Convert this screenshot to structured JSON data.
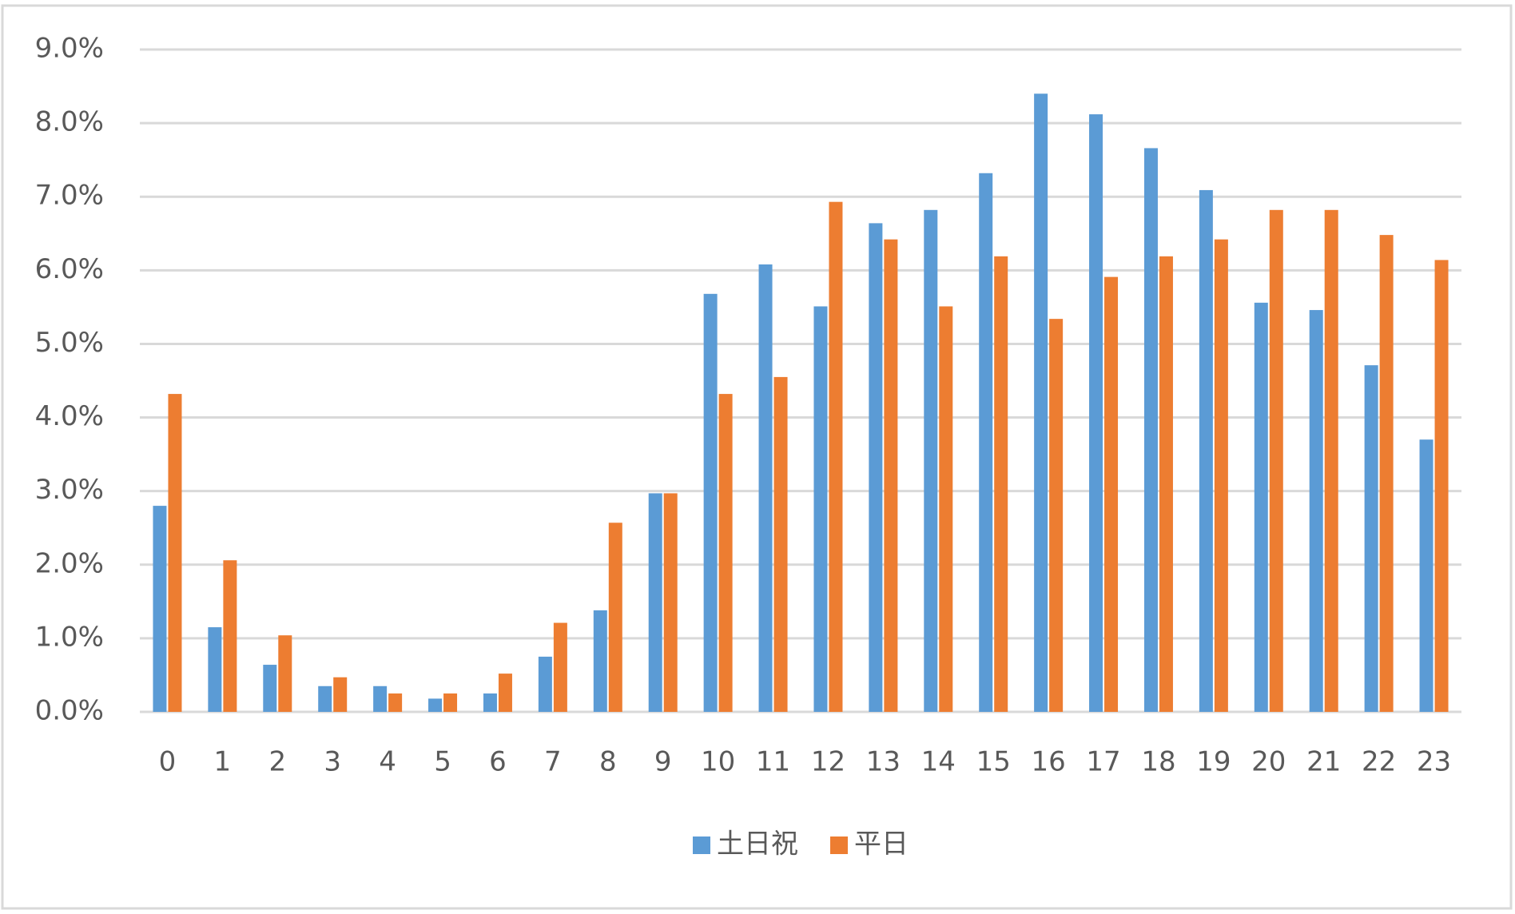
{
  "chart_data": {
    "type": "bar",
    "categories": [
      "0",
      "1",
      "2",
      "3",
      "4",
      "5",
      "6",
      "7",
      "8",
      "9",
      "10",
      "11",
      "12",
      "13",
      "14",
      "15",
      "16",
      "17",
      "18",
      "19",
      "20",
      "21",
      "22",
      "23"
    ],
    "series": [
      {
        "name": "土日祝",
        "color": "#5b9bd5",
        "values": [
          2.8,
          1.15,
          0.64,
          0.35,
          0.35,
          0.18,
          0.25,
          0.75,
          1.38,
          2.97,
          5.68,
          6.08,
          5.51,
          6.64,
          6.82,
          7.32,
          8.4,
          8.12,
          7.66,
          7.09,
          5.56,
          5.46,
          4.71,
          3.7
        ]
      },
      {
        "name": "平日",
        "color": "#ed7d31",
        "values": [
          4.32,
          2.06,
          1.04,
          0.47,
          0.25,
          0.25,
          0.52,
          1.21,
          2.57,
          2.97,
          4.32,
          4.55,
          6.93,
          6.42,
          5.51,
          6.19,
          5.34,
          5.91,
          6.19,
          6.42,
          6.82,
          6.82,
          6.48,
          6.14
        ]
      }
    ],
    "ylim": [
      0,
      9
    ],
    "yticks": [
      {
        "value": 0,
        "label": "0.0%"
      },
      {
        "value": 1,
        "label": "1.0%"
      },
      {
        "value": 2,
        "label": "2.0%"
      },
      {
        "value": 3,
        "label": "3.0%"
      },
      {
        "value": 4,
        "label": "4.0%"
      },
      {
        "value": 5,
        "label": "5.0%"
      },
      {
        "value": 6,
        "label": "6.0%"
      },
      {
        "value": 7,
        "label": "7.0%"
      },
      {
        "value": 8,
        "label": "8.0%"
      },
      {
        "value": 9,
        "label": "9.0%"
      }
    ],
    "grid": true,
    "legend": "bottom"
  }
}
